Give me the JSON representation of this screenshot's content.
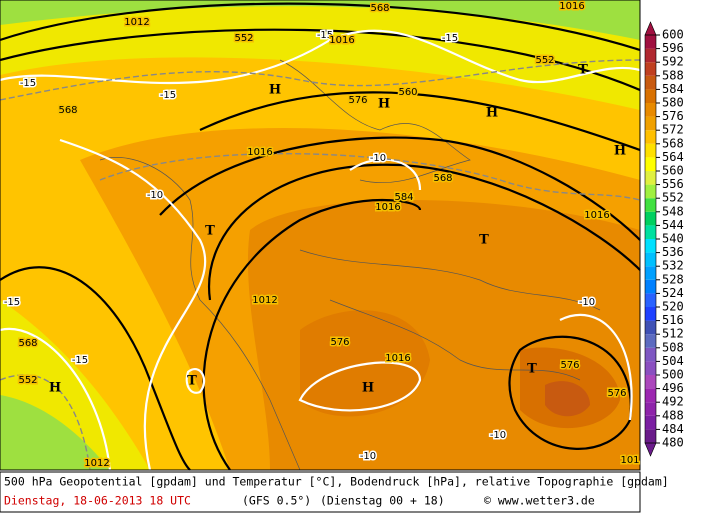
{
  "map": {
    "labels": [
      "1012",
      "568",
      "1016",
      "552",
      "-15",
      "1016",
      "-15",
      "552",
      "T",
      "-15",
      "-15",
      "H",
      "568",
      "576",
      "H",
      "560",
      "H",
      "1016",
      "-10",
      "H",
      "-10",
      "568",
      "584",
      "1016",
      "1016",
      "T",
      "T",
      "1012",
      "-15",
      "-10",
      "568",
      "576",
      "-15",
      "1016",
      "T",
      "576",
      "T",
      "552",
      "H",
      "H",
      "576",
      "-10",
      "1012",
      "-10",
      "101"
    ]
  },
  "legend": {
    "levels": [
      480,
      484,
      488,
      492,
      496,
      500,
      504,
      508,
      512,
      516,
      520,
      524,
      528,
      532,
      536,
      540,
      544,
      548,
      552,
      556,
      560,
      564,
      568,
      572,
      576,
      580,
      584,
      588,
      592,
      596,
      600
    ],
    "colors": [
      "#6a1b8a",
      "#7b1fa2",
      "#8e24aa",
      "#9c27b0",
      "#ab47bc",
      "#8a4fc0",
      "#7e57c2",
      "#5c6bc0",
      "#3f51b5",
      "#1e40ff",
      "#2962ff",
      "#0080ff",
      "#00a0ff",
      "#00c0ff",
      "#00e0ff",
      "#00e0a0",
      "#00d060",
      "#40e040",
      "#a0f040",
      "#e0f040",
      "#ffff00",
      "#ffe000",
      "#ffc000",
      "#f0a000",
      "#e88a00",
      "#d87000",
      "#c85a10",
      "#c04020",
      "#b02830",
      "#a01040"
    ]
  },
  "footer": {
    "description": "500 hPa Geopotential [gpdam] und Temperatur [°C], Bodendruck [hPa], relative Topographie [gpdam]",
    "date": "Dienstag, 18-06-2013  18 UTC",
    "model": "(GFS 0.5°)",
    "run": "(Dienstag 00 + 18)",
    "copyright": "© www.wetter3.de"
  }
}
